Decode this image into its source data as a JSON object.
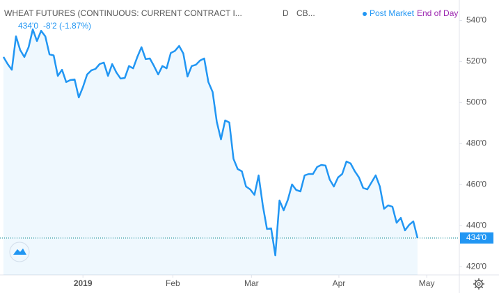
{
  "chart_data": {
    "type": "area",
    "title": "WHEAT FUTURES (CONTINUOUS: CURRENT CONTRACT I...",
    "interval": "D",
    "exchange": "CB...",
    "post_market": "Post Market",
    "end_of_day": "End of Day",
    "header_price": "434'0",
    "header_change": "-8'2 (-1.87%)",
    "color": "#2196f3",
    "last": {
      "value": 434,
      "label": "434'0"
    },
    "categories": [
      null,
      null,
      null,
      null,
      null,
      null,
      null,
      null,
      null,
      null,
      null,
      null,
      null,
      null,
      null,
      null,
      null,
      null,
      null,
      null,
      null,
      null,
      null,
      null,
      null,
      null,
      null,
      null,
      null,
      null,
      null,
      null,
      null,
      null,
      null,
      null,
      null,
      null,
      null,
      null,
      null,
      null,
      null,
      null,
      null,
      null,
      null,
      null,
      null,
      null,
      null,
      null,
      null,
      null,
      null,
      null,
      null,
      null,
      null,
      null,
      null,
      null,
      null,
      null,
      null,
      null,
      null,
      null,
      null,
      null,
      null,
      null,
      null,
      null,
      null,
      null,
      null,
      null,
      null,
      null,
      null,
      null,
      null,
      null,
      null,
      null,
      null,
      null,
      null,
      null,
      null,
      null,
      null,
      null,
      null,
      null,
      null,
      null,
      null,
      null
    ],
    "values": [
      522.2,
      518.8,
      516,
      532.3,
      525.6,
      522.2,
      527,
      535.7,
      530,
      535,
      532.3,
      523.5,
      523,
      513,
      516,
      510,
      511,
      511.3,
      502.5,
      507.6,
      513.7,
      515.7,
      516.4,
      518.8,
      519.5,
      513,
      518.8,
      514.7,
      511.7,
      512,
      517.8,
      516.7,
      522.2,
      527,
      521.2,
      521.5,
      517.8,
      513.7,
      517.8,
      516.7,
      524.2,
      525.2,
      527.6,
      523.9,
      512.7,
      517.8,
      518.4,
      520.5,
      521.5,
      510,
      505.2,
      490.6,
      482.1,
      491.3,
      490.3,
      472.6,
      467.6,
      466.5,
      459.1,
      457.7,
      455,
      464.5,
      449.9,
      438.4,
      438.7,
      425.5,
      452.3,
      447.5,
      452.6,
      460.1,
      457.4,
      456.7,
      464.5,
      465.2,
      465.2,
      468.6,
      469.6,
      469.3,
      462.5,
      459.1,
      463.5,
      465.2,
      471.3,
      470.3,
      466.5,
      463.5,
      458.4,
      457.7,
      461.1,
      464.5,
      459.1,
      448.2,
      449.9,
      449.2,
      441.4,
      443.8,
      437.7,
      440.4,
      442.1,
      434
    ],
    "xlim": [
      0,
      109
    ],
    "xticks": [
      {
        "value": 19,
        "label": "2019"
      },
      {
        "value": 40.5,
        "label": "Feb"
      },
      {
        "value": 59.3,
        "label": "Mar"
      },
      {
        "value": 80.2,
        "label": "Apr"
      },
      {
        "value": 101.2,
        "label": "May"
      }
    ],
    "ylim": [
      416,
      550
    ],
    "yticks": [
      {
        "value": 420,
        "label": "420'0"
      },
      {
        "value": 440,
        "label": "440'0"
      },
      {
        "value": 460,
        "label": "460'0"
      },
      {
        "value": 480,
        "label": "480'0"
      },
      {
        "value": 500,
        "label": "500'0"
      },
      {
        "value": 520,
        "label": "520'0"
      },
      {
        "value": 540,
        "label": "540'0"
      }
    ]
  }
}
